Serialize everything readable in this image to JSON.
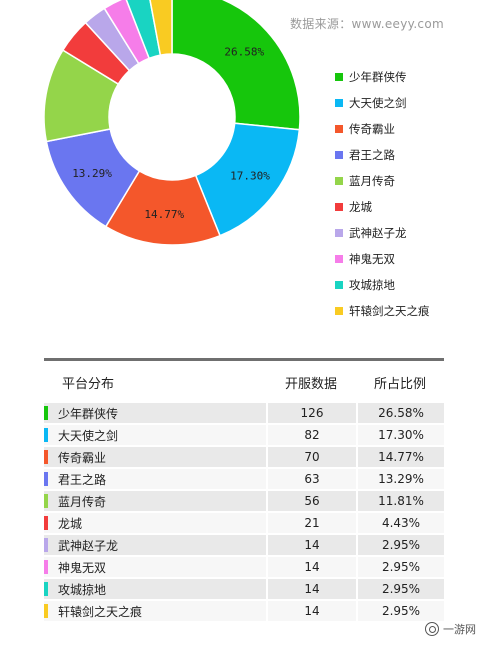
{
  "source_text": "数据来源：www.eeyy.com",
  "watermark": "一游网",
  "chart_data": {
    "type": "pie",
    "donut": true,
    "start_angle_deg": 0,
    "direction": "clockwise",
    "legend_position": "right",
    "categories": [
      "少年群侠传",
      "大天使之剑",
      "传奇霸业",
      "君王之路",
      "蓝月传奇",
      "龙城",
      "武神赵子龙",
      "神鬼无双",
      "攻城掠地",
      "轩辕剑之天之痕"
    ],
    "values": [
      126,
      82,
      70,
      63,
      56,
      21,
      14,
      14,
      14,
      14
    ],
    "percent_labels": [
      "26.58%",
      "17.30%",
      "14.77%",
      "13.29%",
      "11.81%",
      "4.43%",
      "2.95%",
      "2.95%",
      "2.95%",
      "2.95%"
    ],
    "slice_labels_shown": [
      "26.58%",
      "17.30%",
      "14.77%",
      "13.29%",
      "",
      "",
      "",
      "",
      "",
      ""
    ],
    "colors": [
      "#16c60c",
      "#0ab8f4",
      "#f4572b",
      "#6a76f0",
      "#94d54a",
      "#f23c3c",
      "#b9a7ea",
      "#f67de9",
      "#19d4c2",
      "#f9cb22"
    ]
  },
  "table": {
    "headers": [
      "平台分布",
      "开服数据",
      "所占比例"
    ],
    "rows": [
      {
        "name": "少年群侠传",
        "count": "126",
        "pct": "26.58%"
      },
      {
        "name": "大天使之剑",
        "count": "82",
        "pct": "17.30%"
      },
      {
        "name": "传奇霸业",
        "count": "70",
        "pct": "14.77%"
      },
      {
        "name": "君王之路",
        "count": "63",
        "pct": "13.29%"
      },
      {
        "name": "蓝月传奇",
        "count": "56",
        "pct": "11.81%"
      },
      {
        "name": "龙城",
        "count": "21",
        "pct": "4.43%"
      },
      {
        "name": "武神赵子龙",
        "count": "14",
        "pct": "2.95%"
      },
      {
        "name": "神鬼无双",
        "count": "14",
        "pct": "2.95%"
      },
      {
        "name": "攻城掠地",
        "count": "14",
        "pct": "2.95%"
      },
      {
        "name": "轩辕剑之天之痕",
        "count": "14",
        "pct": "2.95%"
      }
    ]
  }
}
